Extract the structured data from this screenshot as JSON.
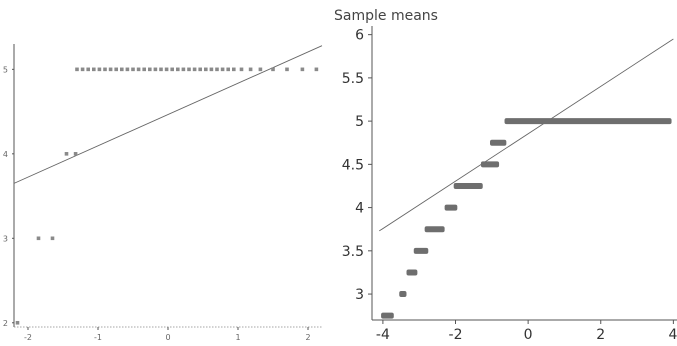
{
  "colors": {
    "points": "#8a8a8a",
    "line": "#666666",
    "axis": "#555555"
  },
  "chart_data": [
    {
      "type": "scatter",
      "title": "",
      "xlabel": "",
      "ylabel": "",
      "xlim": [
        -2.2,
        2.2
      ],
      "ylim": [
        1.95,
        5.3
      ],
      "x_ticks": [
        -2,
        -1,
        0,
        1,
        2
      ],
      "x_tick_labels": [
        "-2",
        "-1",
        "0",
        "1",
        "2"
      ],
      "y_ticks": [
        2,
        3,
        4,
        5
      ],
      "y_tick_labels": [
        "2",
        "3",
        "4",
        "5"
      ],
      "reference_line": {
        "x": [
          -2.2,
          2.2
        ],
        "y": [
          3.65,
          5.28
        ]
      },
      "points": [
        {
          "x": -2.15,
          "y": 2
        },
        {
          "x": -1.85,
          "y": 3
        },
        {
          "x": -1.65,
          "y": 3
        },
        {
          "x": -1.45,
          "y": 4
        },
        {
          "x": -1.32,
          "y": 4
        },
        {
          "x": -1.3,
          "y": 5
        },
        {
          "x": -1.22,
          "y": 5
        },
        {
          "x": -1.14,
          "y": 5
        },
        {
          "x": -1.06,
          "y": 5
        },
        {
          "x": -0.98,
          "y": 5
        },
        {
          "x": -0.9,
          "y": 5
        },
        {
          "x": -0.82,
          "y": 5
        },
        {
          "x": -0.74,
          "y": 5
        },
        {
          "x": -0.66,
          "y": 5
        },
        {
          "x": -0.58,
          "y": 5
        },
        {
          "x": -0.5,
          "y": 5
        },
        {
          "x": -0.42,
          "y": 5
        },
        {
          "x": -0.34,
          "y": 5
        },
        {
          "x": -0.26,
          "y": 5
        },
        {
          "x": -0.18,
          "y": 5
        },
        {
          "x": -0.1,
          "y": 5
        },
        {
          "x": -0.02,
          "y": 5
        },
        {
          "x": 0.06,
          "y": 5
        },
        {
          "x": 0.14,
          "y": 5
        },
        {
          "x": 0.22,
          "y": 5
        },
        {
          "x": 0.3,
          "y": 5
        },
        {
          "x": 0.38,
          "y": 5
        },
        {
          "x": 0.46,
          "y": 5
        },
        {
          "x": 0.54,
          "y": 5
        },
        {
          "x": 0.62,
          "y": 5
        },
        {
          "x": 0.7,
          "y": 5
        },
        {
          "x": 0.78,
          "y": 5
        },
        {
          "x": 0.86,
          "y": 5
        },
        {
          "x": 0.94,
          "y": 5
        },
        {
          "x": 1.05,
          "y": 5
        },
        {
          "x": 1.18,
          "y": 5
        },
        {
          "x": 1.32,
          "y": 5
        },
        {
          "x": 1.5,
          "y": 5
        },
        {
          "x": 1.7,
          "y": 5
        },
        {
          "x": 1.92,
          "y": 5
        },
        {
          "x": 2.12,
          "y": 5
        }
      ]
    },
    {
      "type": "scatter",
      "title": "Sample means",
      "xlabel": "",
      "ylabel": "",
      "xlim": [
        -4.3,
        4.1
      ],
      "ylim": [
        2.7,
        6.1
      ],
      "x_ticks": [
        -4,
        -2,
        0,
        2,
        4
      ],
      "x_tick_labels": [
        "-4",
        "-2",
        "0",
        "2",
        "4"
      ],
      "y_ticks": [
        3,
        3.5,
        4,
        4.5,
        5,
        5.5,
        6
      ],
      "y_tick_labels": [
        "3",
        "3.5",
        "4",
        "4.5",
        "5",
        "5.5",
        "6"
      ],
      "reference_line": {
        "x": [
          -4.1,
          4.0
        ],
        "y": [
          3.73,
          5.95
        ]
      },
      "segments": [
        {
          "y": 2.75,
          "x_from": -4.05,
          "x_to": -3.7
        },
        {
          "y": 3.0,
          "x_from": -3.55,
          "x_to": -3.35
        },
        {
          "y": 3.25,
          "x_from": -3.35,
          "x_to": -3.05
        },
        {
          "y": 3.5,
          "x_from": -3.15,
          "x_to": -2.75
        },
        {
          "y": 3.75,
          "x_from": -2.85,
          "x_to": -2.3
        },
        {
          "y": 4.0,
          "x_from": -2.3,
          "x_to": -1.95
        },
        {
          "y": 4.25,
          "x_from": -2.05,
          "x_to": -1.25
        },
        {
          "y": 4.5,
          "x_from": -1.3,
          "x_to": -0.8
        },
        {
          "y": 4.75,
          "x_from": -1.05,
          "x_to": -0.6
        },
        {
          "y": 5.0,
          "x_from": -0.65,
          "x_to": 3.95
        }
      ]
    }
  ]
}
